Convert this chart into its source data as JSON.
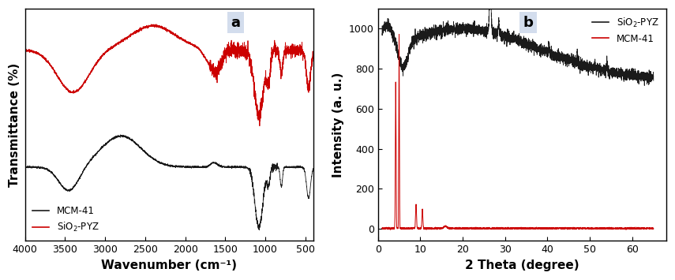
{
  "panel_a": {
    "title": "a",
    "xlabel": "Wavenumber (cm⁻¹)",
    "ylabel": "Transmittance (%)",
    "xlim": [
      4000,
      400
    ],
    "xticks": [
      4000,
      3500,
      3000,
      2500,
      2000,
      1500,
      1000,
      500
    ],
    "mcm41_color": "#1a1a1a",
    "sio2pyz_color": "#cc0000"
  },
  "panel_b": {
    "title": "b",
    "xlabel": "2 Theta (degree)",
    "ylabel": "Intensity (a. u.)",
    "xlim": [
      0,
      68
    ],
    "ylim": [
      -60,
      1100
    ],
    "yticks": [
      0,
      200,
      400,
      600,
      800,
      1000
    ],
    "xticks": [
      0,
      10,
      20,
      30,
      40,
      50,
      60
    ],
    "sio2pyz_color": "#1a1a1a",
    "mcm41_color": "#cc0000"
  },
  "fig_bg": "#ffffff",
  "label_fontsize": 11,
  "tick_fontsize": 9,
  "panel_label_fontsize": 13,
  "panel_label_bg": "#ccd8ea"
}
